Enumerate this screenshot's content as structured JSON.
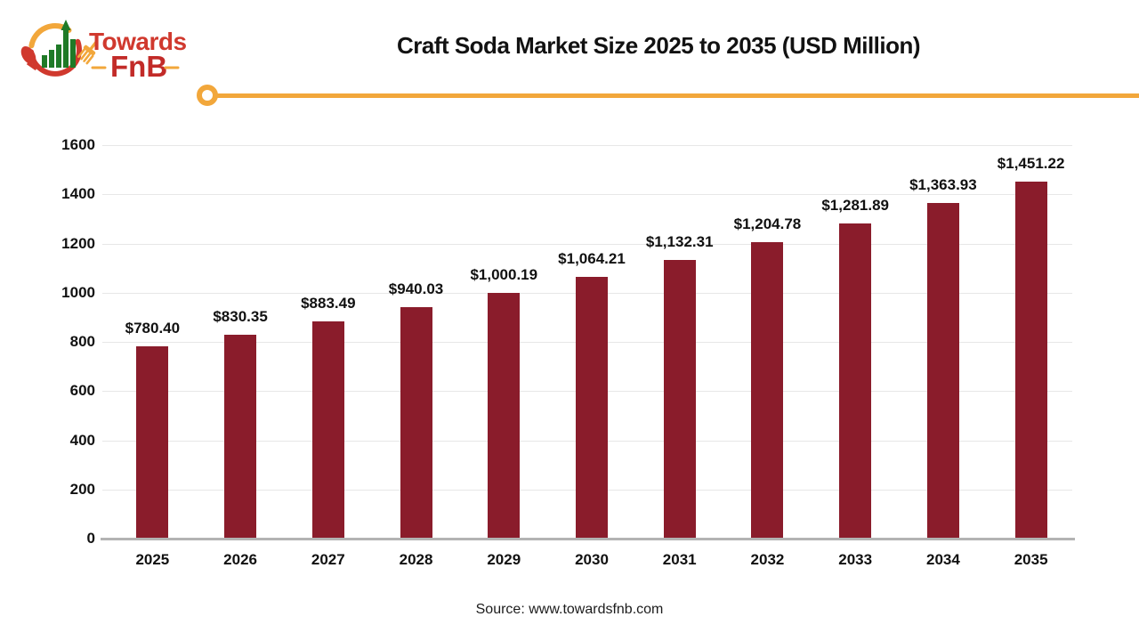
{
  "header": {
    "logo": {
      "word1": "Towards",
      "word2": "FnB"
    },
    "title": "Craft Soda Market Size 2025 to 2035 (USD Million)"
  },
  "footer": {
    "source": "Source: www.towardsfnb.com"
  },
  "colors": {
    "bar": "#8a1c2b",
    "accent_gold": "#f2a73b",
    "logo_red": "#d0392e",
    "logo_dark_red": "#c22b28",
    "logo_green": "#1f7a27",
    "grid": "#e7e7e7",
    "axis": "#b3b3b3",
    "text": "#111111"
  },
  "chart_data": {
    "type": "bar",
    "title": "Craft Soda Market Size 2025 to 2035 (USD Million)",
    "categories": [
      "2025",
      "2026",
      "2027",
      "2028",
      "2029",
      "2030",
      "2031",
      "2032",
      "2033",
      "2034",
      "2035"
    ],
    "values": [
      780.4,
      830.35,
      883.49,
      940.03,
      1000.19,
      1064.21,
      1132.31,
      1204.78,
      1281.89,
      1363.93,
      1451.22
    ],
    "value_labels": [
      "$780.40",
      "$830.35",
      "$883.49",
      "$940.03",
      "$1,000.19",
      "$1,064.21",
      "$1,132.31",
      "$1,204.78",
      "$1,281.89",
      "$1,363.93",
      "$1,451.22"
    ],
    "xlabel": "",
    "ylabel": "",
    "ylim": [
      0,
      1600
    ],
    "yticks": [
      0,
      200,
      400,
      600,
      800,
      1000,
      1200,
      1400,
      1600
    ],
    "grid": true,
    "legend": "none"
  }
}
